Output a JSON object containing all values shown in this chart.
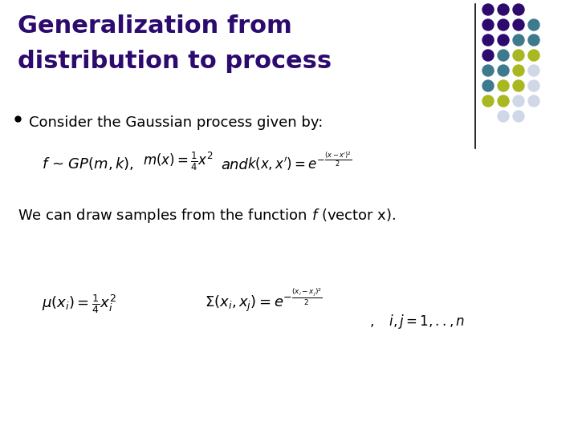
{
  "title_line1": "Generalization from",
  "title_line2": "distribution to process",
  "title_color": "#2d0a6e",
  "title_fontsize": 22,
  "bg_color": "#ffffff",
  "bullet_text": "Consider the Gaussian process given by:",
  "body_fontsize": 13,
  "formula_fontsize": 12,
  "dot_grid": [
    [
      "#2d0a6e",
      "#2d0a6e",
      "#2d0a6e",
      null
    ],
    [
      "#2d0a6e",
      "#2d0a6e",
      "#2d0a6e",
      "#3d7a8e"
    ],
    [
      "#2d0a6e",
      "#2d0a6e",
      "#3d7a8e",
      "#3d7a8e"
    ],
    [
      "#2d0a6e",
      "#3d7a8e",
      "#a8b820",
      "#a8b820"
    ],
    [
      "#3d7a8e",
      "#3d7a8e",
      "#a8b820",
      "#d0d8e8"
    ],
    [
      "#3d7a8e",
      "#a8b820",
      "#a8b820",
      "#d0d8e8"
    ],
    [
      "#a8b820",
      "#a8b820",
      "#d0d8e8",
      "#d0d8e8"
    ],
    [
      null,
      "#d0d8e8",
      "#d0d8e8",
      null
    ]
  ]
}
